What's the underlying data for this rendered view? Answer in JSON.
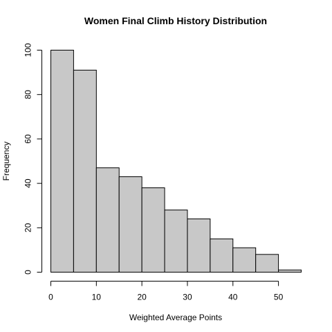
{
  "chart_data": {
    "type": "bar",
    "title": "Women Final Climb History Distribution",
    "xlabel": "Weighted Average Points",
    "ylabel": "Frequency",
    "bins": [
      {
        "start": 0,
        "end": 5,
        "value": 100
      },
      {
        "start": 5,
        "end": 10,
        "value": 91
      },
      {
        "start": 10,
        "end": 15,
        "value": 47
      },
      {
        "start": 15,
        "end": 20,
        "value": 43
      },
      {
        "start": 20,
        "end": 25,
        "value": 38
      },
      {
        "start": 25,
        "end": 30,
        "value": 28
      },
      {
        "start": 30,
        "end": 35,
        "value": 24
      },
      {
        "start": 35,
        "end": 40,
        "value": 15
      },
      {
        "start": 40,
        "end": 45,
        "value": 11
      },
      {
        "start": 45,
        "end": 50,
        "value": 8
      },
      {
        "start": 50,
        "end": 55,
        "value": 1
      }
    ],
    "xlim": [
      0,
      55
    ],
    "ylim": [
      0,
      100
    ],
    "xticks": [
      0,
      10,
      20,
      30,
      40,
      50
    ],
    "yticks": [
      0,
      20,
      40,
      60,
      80,
      100
    ],
    "bar_color": "#c8c8c8",
    "border_color": "#000000",
    "grid": false
  }
}
